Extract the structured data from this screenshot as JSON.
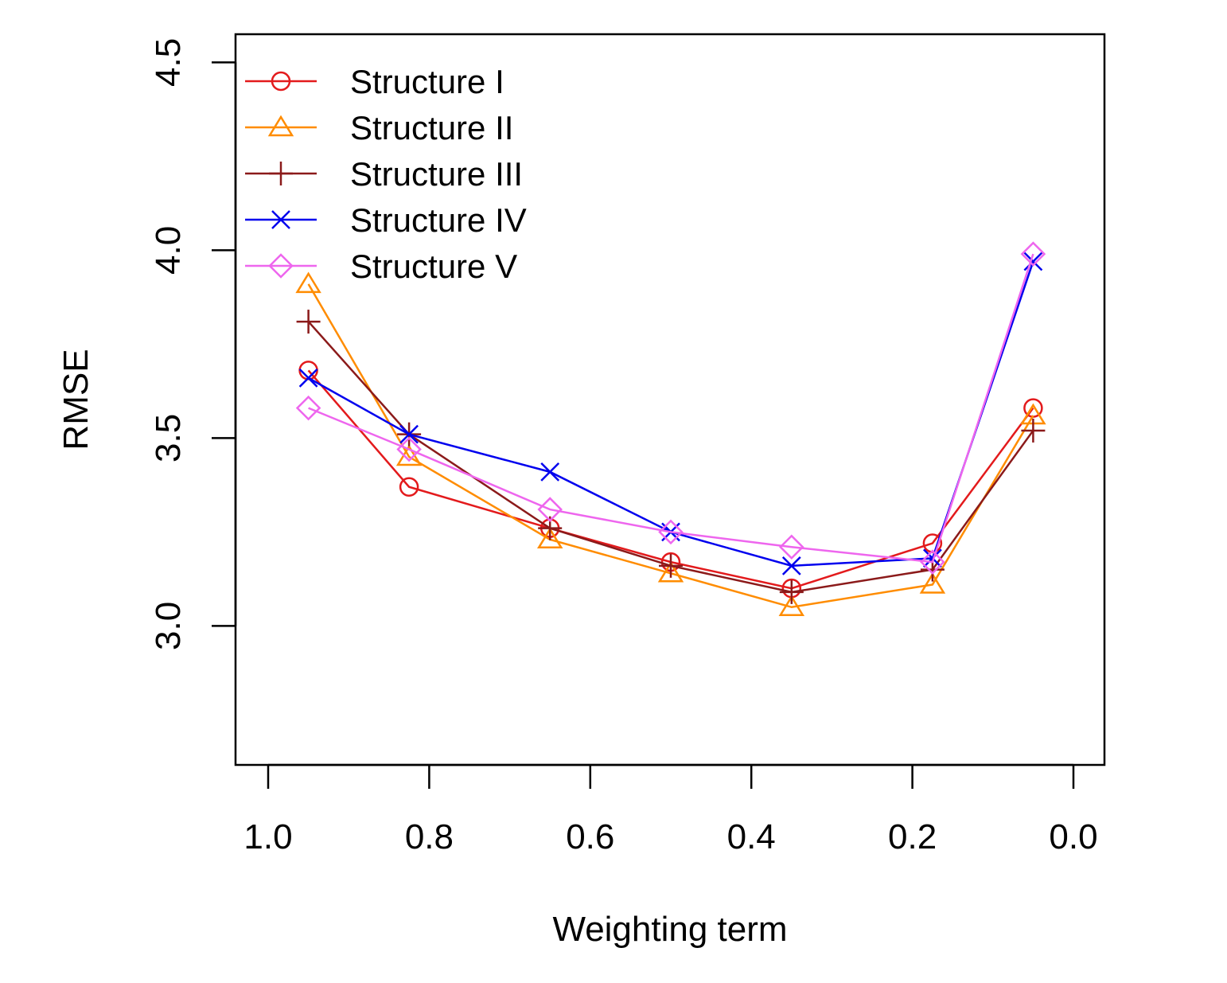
{
  "chart_data": {
    "type": "line",
    "title": "",
    "xlabel": "Weighting term",
    "ylabel": "RMSE",
    "xlim": [
      1.0,
      0.0
    ],
    "x_reversed": true,
    "ylim": [
      2.63,
      4.575
    ],
    "x_ticks": [
      "1.0",
      "0.8",
      "0.6",
      "0.4",
      "0.2",
      "0.0"
    ],
    "x_tick_values": [
      1.0,
      0.8,
      0.6,
      0.4,
      0.2,
      0.0
    ],
    "y_ticks": [
      "3.0",
      "3.5",
      "4.0",
      "4.5"
    ],
    "y_tick_values": [
      3.0,
      3.5,
      4.0,
      4.5
    ],
    "grid": false,
    "legend_position": "top-left",
    "x": [
      0.95,
      0.825,
      0.65,
      0.5,
      0.35,
      0.175,
      0.05
    ],
    "series": [
      {
        "name": "Structure I",
        "color": "#e31a1c",
        "marker": "circle",
        "values": [
          3.68,
          3.37,
          3.26,
          3.17,
          3.1,
          3.22,
          3.58
        ]
      },
      {
        "name": "Structure II",
        "color": "#ff8c00",
        "marker": "triangle",
        "values": [
          3.91,
          3.45,
          3.23,
          3.14,
          3.05,
          3.11,
          3.56
        ]
      },
      {
        "name": "Structure III",
        "color": "#8b1a1a",
        "marker": "plus",
        "values": [
          3.81,
          3.51,
          3.26,
          3.16,
          3.09,
          3.15,
          3.52
        ]
      },
      {
        "name": "Structure IV",
        "color": "#0000ee",
        "marker": "cross",
        "values": [
          3.66,
          3.51,
          3.41,
          3.25,
          3.16,
          3.18,
          3.97
        ]
      },
      {
        "name": "Structure V",
        "color": "#ee66ee",
        "marker": "diamond",
        "values": [
          3.58,
          3.47,
          3.31,
          3.25,
          3.21,
          3.17,
          3.99
        ]
      }
    ]
  }
}
